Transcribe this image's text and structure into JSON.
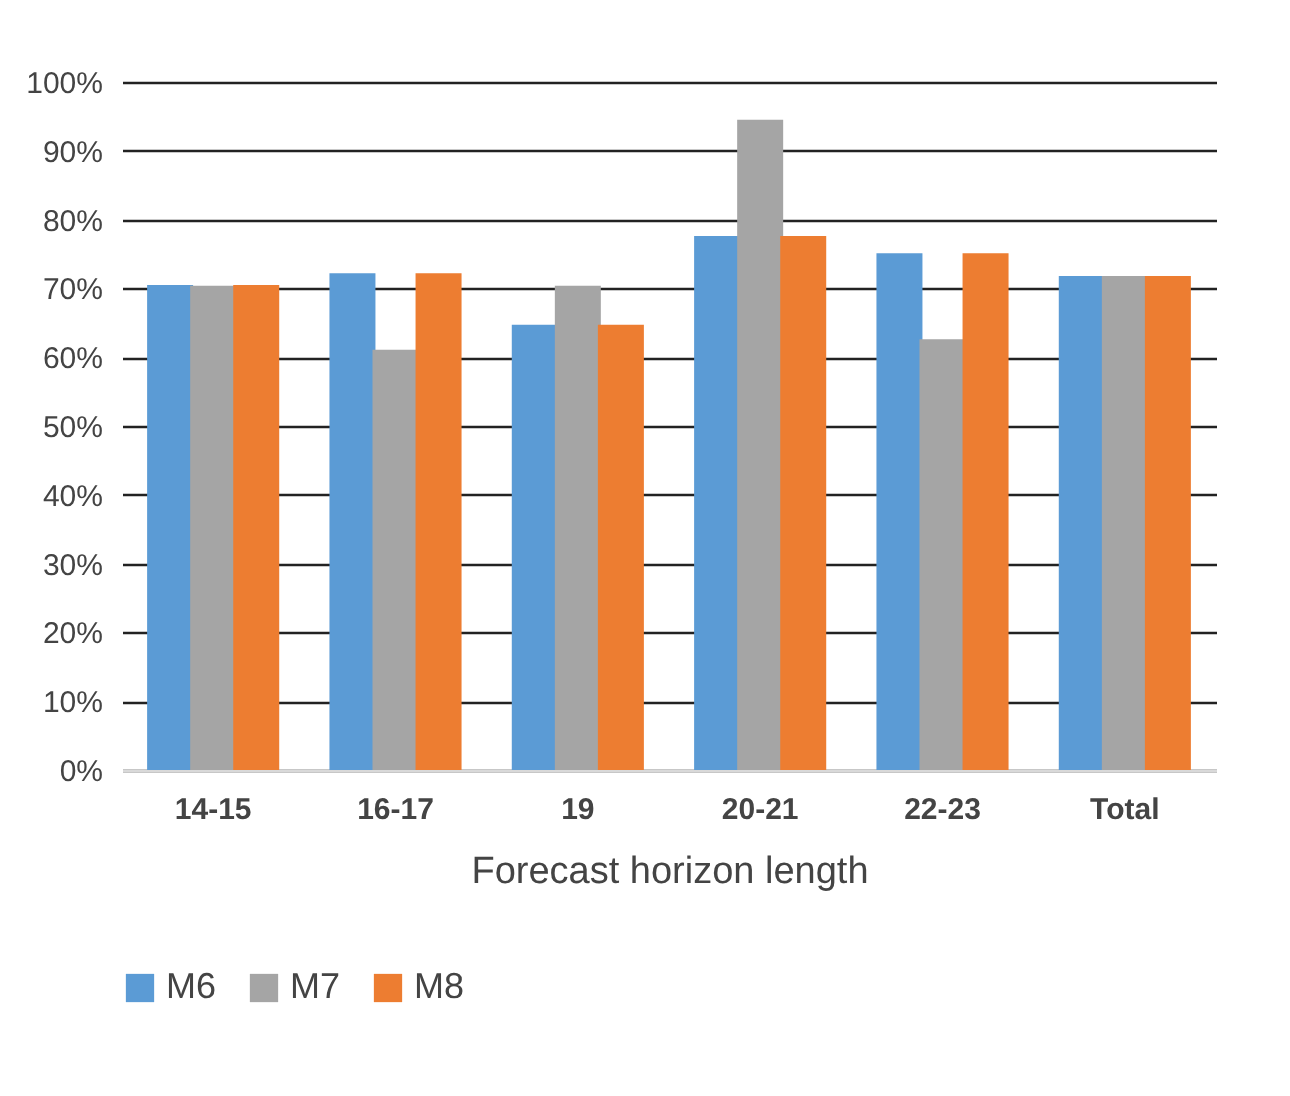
{
  "chart_data": {
    "type": "bar",
    "xlabel": "Forecast horizon length",
    "categories": [
      "14-15",
      "16-17",
      "19",
      "20-21",
      "22-23",
      "Total"
    ],
    "series": [
      {
        "name": "M6",
        "color": "#5b9bd5",
        "values": [
          0.705,
          0.722,
          0.647,
          0.776,
          0.751,
          0.718
        ]
      },
      {
        "name": "M7",
        "color": "#a5a5a5",
        "values": [
          0.704,
          0.611,
          0.704,
          0.945,
          0.626,
          0.718
        ]
      },
      {
        "name": "M8",
        "color": "#ed7d31",
        "values": [
          0.705,
          0.722,
          0.647,
          0.776,
          0.751,
          0.718
        ]
      }
    ],
    "ylim": [
      0,
      1
    ],
    "yticks": [
      {
        "value": 0,
        "label": "0%"
      },
      {
        "value": 0.1,
        "label": "10%"
      },
      {
        "value": 0.2,
        "label": "20%"
      },
      {
        "value": 0.3,
        "label": "30%"
      },
      {
        "value": 0.4,
        "label": "40%"
      },
      {
        "value": 0.5,
        "label": "50%"
      },
      {
        "value": 0.6,
        "label": "60%"
      },
      {
        "value": 0.7,
        "label": "70%"
      },
      {
        "value": 0.8,
        "label": "80%"
      },
      {
        "value": 0.9,
        "label": "90%"
      },
      {
        "value": 1,
        "label": "100%"
      }
    ],
    "grid": "y",
    "legend": "bottom"
  }
}
